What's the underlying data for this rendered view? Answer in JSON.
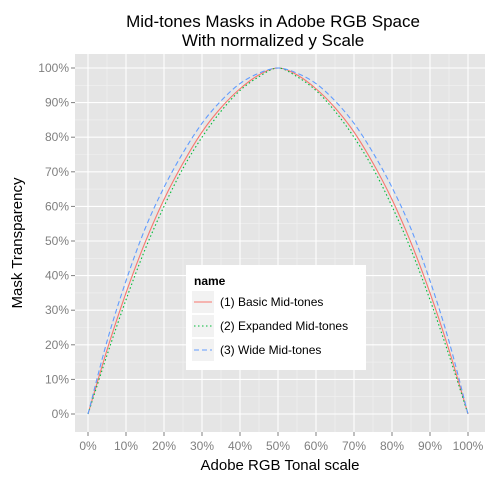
{
  "chart_data": {
    "type": "line",
    "title": "Mid-tones Masks in Adobe RGB Space",
    "subtitle": "With normalized y Scale",
    "xlabel": "Adobe RGB Tonal scale",
    "ylabel": "Mask Transparency",
    "xlim": [
      0,
      100
    ],
    "ylim": [
      0,
      100
    ],
    "x_ticks": [
      "0%",
      "10%",
      "20%",
      "30%",
      "40%",
      "50%",
      "60%",
      "70%",
      "80%",
      "90%",
      "100%"
    ],
    "y_ticks": [
      "0%",
      "10%",
      "20%",
      "30%",
      "40%",
      "50%",
      "60%",
      "70%",
      "80%",
      "90%",
      "100%"
    ],
    "grid": true,
    "legend": {
      "title": "name",
      "placement": "bottom-center"
    },
    "x": [
      0,
      5,
      10,
      15,
      20,
      25,
      30,
      35,
      40,
      45,
      50,
      55,
      60,
      65,
      70,
      75,
      80,
      85,
      90,
      95,
      100
    ],
    "series": [
      {
        "name": "(1) Basic Mid-tones",
        "color": "#f8766d",
        "dash": "solid",
        "values": [
          0,
          18.5,
          35,
          49.5,
          62,
          72.5,
          81.5,
          88.5,
          94,
          98,
          100,
          98,
          94,
          88.5,
          81.5,
          72.5,
          62,
          49.5,
          35,
          18.5,
          0
        ]
      },
      {
        "name": "(2) Expanded Mid-tones",
        "color": "#00ba38",
        "dash": "dotted",
        "values": [
          0,
          17,
          33,
          47.5,
          60,
          71,
          80,
          87.5,
          93.5,
          97.5,
          100,
          97.5,
          93.5,
          87.5,
          80,
          71,
          60,
          47.5,
          33,
          17,
          0
        ]
      },
      {
        "name": "(3) Wide Mid-tones",
        "color": "#619cff",
        "dash": "dashed",
        "values": [
          0,
          21,
          38.5,
          53.5,
          65.5,
          75.5,
          84,
          90.5,
          95.5,
          98.5,
          100,
          98.5,
          95.5,
          90.5,
          84,
          75.5,
          65.5,
          53.5,
          38.5,
          21,
          0
        ]
      }
    ]
  }
}
